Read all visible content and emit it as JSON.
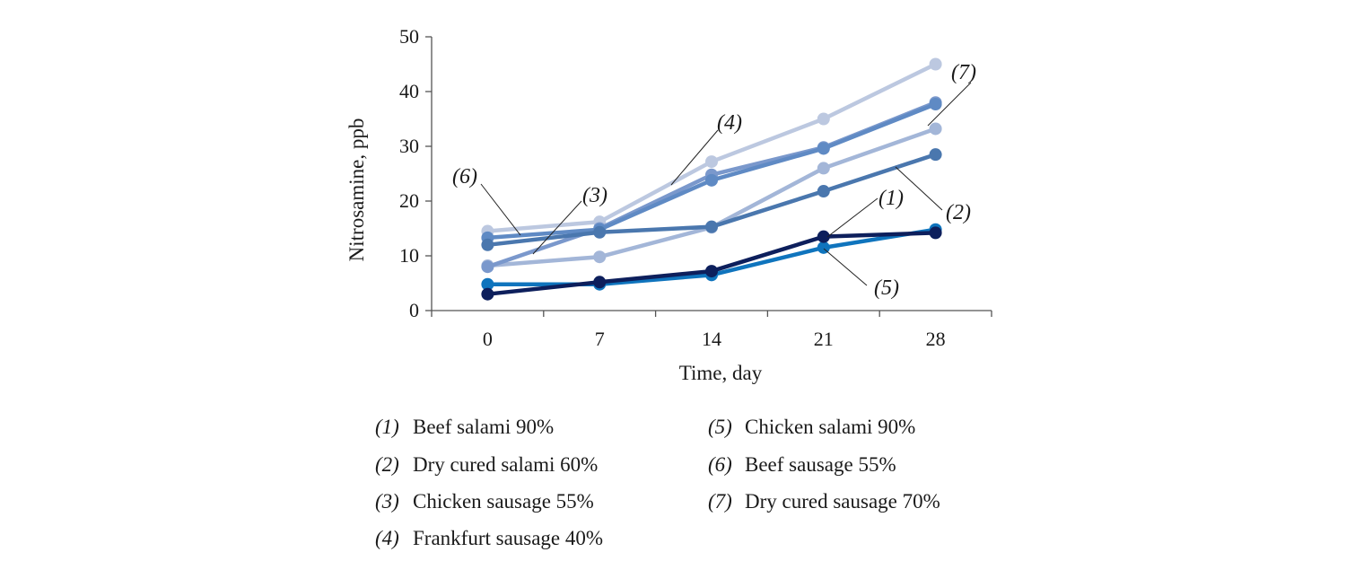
{
  "chart_data": {
    "type": "line",
    "xlabel": "Time, day",
    "ylabel": "Nitrosamine, ppb",
    "categories": [
      "0",
      "7",
      "14",
      "21",
      "28"
    ],
    "ylim": [
      0,
      50
    ],
    "yticks": [
      "0",
      "10",
      "20",
      "30",
      "40",
      "50"
    ],
    "grid": false,
    "legend_position": "bottom",
    "series": [
      {
        "num": "(1)",
        "name": "Beef salami 90%",
        "color": "#0d1f5c",
        "values": [
          3.0,
          5.2,
          7.2,
          13.5,
          14.2
        ]
      },
      {
        "num": "(2)",
        "name": "Dry cured salami 60%",
        "color": "#4a77ae",
        "values": [
          12.0,
          14.3,
          15.3,
          21.8,
          28.5
        ]
      },
      {
        "num": "(3)",
        "name": "Chicken sausage 55%",
        "color": "#7a98cc",
        "values": [
          8.0,
          15.0,
          24.8,
          29.8,
          38.0
        ]
      },
      {
        "num": "(4)",
        "name": "Frankfurt sausage 40%",
        "color": "#bcc8e0",
        "values": [
          14.5,
          16.2,
          27.2,
          35.0,
          45.0
        ]
      },
      {
        "num": "(5)",
        "name": "Chicken salami 90%",
        "color": "#0f74bd",
        "values": [
          4.8,
          4.8,
          6.5,
          11.5,
          14.8
        ]
      },
      {
        "num": "(6)",
        "name": "Beef sausage 55%",
        "color": "#5f8ac4",
        "values": [
          13.3,
          14.8,
          23.8,
          29.6,
          37.7
        ]
      },
      {
        "num": "(7)",
        "name": "Dry cured sausage 70%",
        "color": "#a3b6d8",
        "values": [
          8.2,
          9.8,
          15.2,
          26.0,
          33.2
        ]
      }
    ],
    "callouts": [
      "(1)",
      "(2)",
      "(3)",
      "(4)",
      "(5)",
      "(6)",
      "(7)"
    ]
  }
}
